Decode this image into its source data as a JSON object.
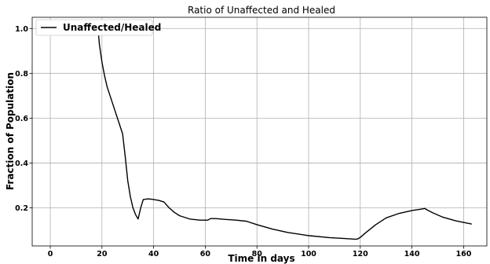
{
  "chart_data": {
    "type": "line",
    "title": "Ratio of Unaffected and Healed",
    "xlabel": "Time in days",
    "ylabel": "Fraction of Population",
    "xlim": [
      -7,
      169
    ],
    "ylim": [
      0.03,
      1.05
    ],
    "xticks": [
      0,
      20,
      40,
      60,
      80,
      100,
      120,
      140,
      160
    ],
    "yticks": [
      0.2,
      0.4,
      0.6,
      0.8,
      1.0
    ],
    "grid": true,
    "legend_position": "top-left",
    "series": [
      {
        "name": "Unaffected/Healed",
        "color": "#000000",
        "x": [
          18.5,
          19.0,
          20.0,
          21.0,
          22.0,
          24.0,
          26.0,
          28.0,
          29.0,
          30.0,
          31.0,
          32.0,
          33.0,
          34.0,
          35.0,
          36.0,
          38.0,
          40.0,
          42.0,
          44.0,
          46.0,
          48.0,
          50.0,
          54.0,
          58.0,
          60.0,
          61.0,
          62.0,
          64.0,
          68.0,
          72.0,
          76.0,
          80.0,
          86.0,
          92.0,
          100.0,
          108.0,
          114.0,
          118.0,
          119.0,
          120.0,
          122.0,
          126.0,
          130.0,
          135.0,
          140.0,
          144.0,
          145.0,
          146.0,
          148.0,
          152.0,
          157.0,
          163.0
        ],
        "y": [
          1.0,
          0.93,
          0.85,
          0.79,
          0.74,
          0.67,
          0.6,
          0.53,
          0.43,
          0.32,
          0.25,
          0.2,
          0.17,
          0.15,
          0.2,
          0.237,
          0.24,
          0.237,
          0.233,
          0.226,
          0.2,
          0.18,
          0.165,
          0.15,
          0.145,
          0.145,
          0.145,
          0.152,
          0.152,
          0.148,
          0.145,
          0.14,
          0.125,
          0.105,
          0.09,
          0.076,
          0.067,
          0.063,
          0.06,
          0.061,
          0.068,
          0.088,
          0.125,
          0.155,
          0.175,
          0.188,
          0.195,
          0.197,
          0.19,
          0.178,
          0.158,
          0.142,
          0.128
        ]
      }
    ]
  }
}
